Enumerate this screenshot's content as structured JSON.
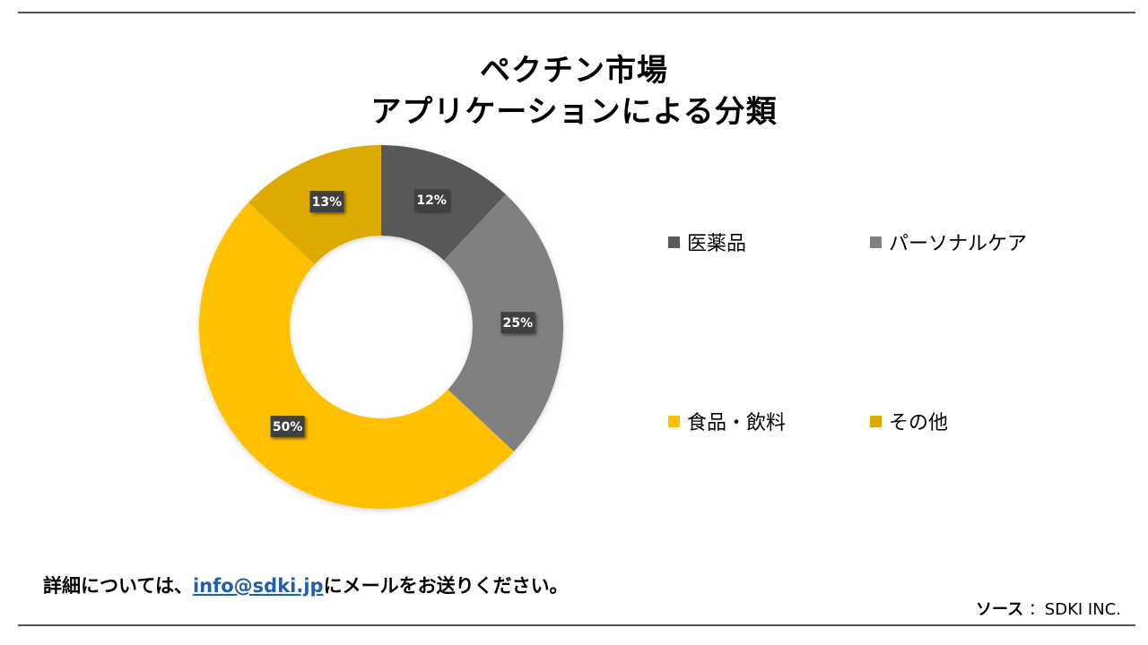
{
  "title_lines": [
    "ペクチン市場",
    "アプリケーションによる分類"
  ],
  "chart_data": {
    "type": "pie",
    "variant": "donut",
    "categories": [
      "医薬品",
      "パーソナルケア",
      "食品・飲料",
      "その他"
    ],
    "values": [
      12,
      25,
      50,
      13
    ],
    "data_labels": [
      "12%",
      "25%",
      "50%",
      "13%"
    ],
    "colors": [
      "#595959",
      "#808080",
      "#ffc000",
      "#dcaa05"
    ],
    "legend_placement": "right"
  },
  "footer": {
    "prefix": "詳細については、",
    "email": "info@sdki.jp",
    "suffix": "にメールをお送りください。"
  },
  "source": {
    "label": "ソース",
    "value": "：SDKI INC."
  }
}
